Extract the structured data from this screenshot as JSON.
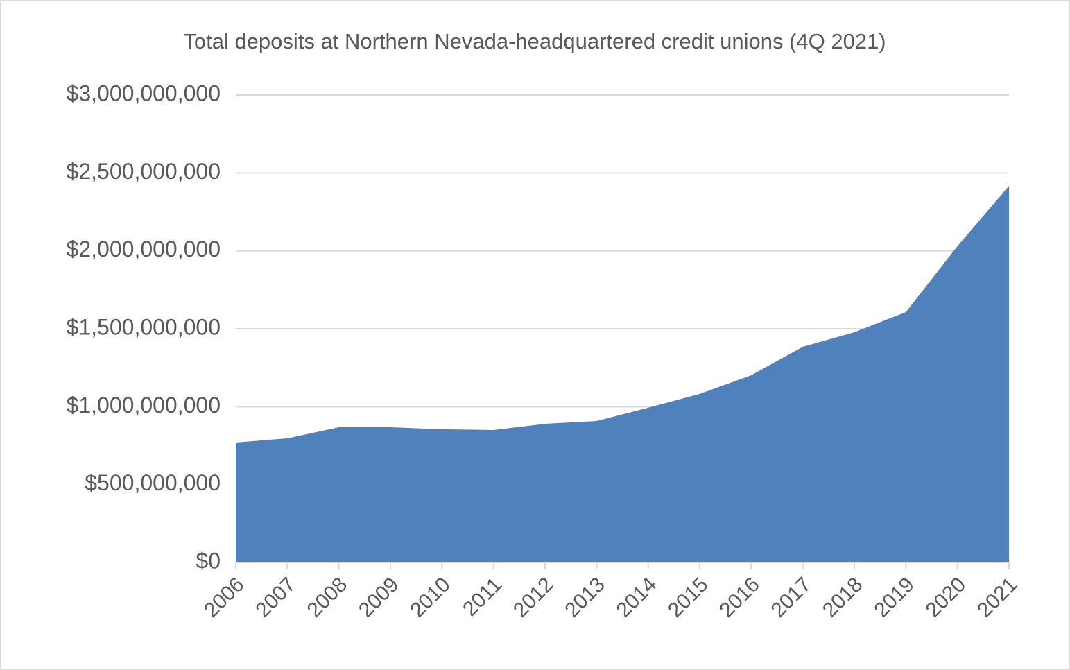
{
  "chart_data": {
    "type": "area",
    "title": "Total deposits at Northern Nevada-headquartered credit unions (4Q 2021)",
    "categories": [
      "2006",
      "2007",
      "2008",
      "2009",
      "2010",
      "2011",
      "2012",
      "2013",
      "2014",
      "2015",
      "2016",
      "2017",
      "2018",
      "2019",
      "2020",
      "2021"
    ],
    "values": [
      770000000,
      797000000,
      868000000,
      868000000,
      855000000,
      850000000,
      890000000,
      908000000,
      993000000,
      1082000000,
      1202000000,
      1384000000,
      1478000000,
      1607000000,
      2030000000,
      2417000000
    ],
    "color": "#4f81bd",
    "ylim": [
      0,
      3000000000
    ],
    "yticks": [
      {
        "value": 0,
        "label": "$0"
      },
      {
        "value": 500000000,
        "label": "$500,000,000"
      },
      {
        "value": 1000000000,
        "label": "$1,000,000,000"
      },
      {
        "value": 1500000000,
        "label": "$1,500,000,000"
      },
      {
        "value": 2000000000,
        "label": "$2,000,000,000"
      },
      {
        "value": 2500000000,
        "label": "$2,500,000,000"
      },
      {
        "value": 3000000000,
        "label": "$3,000,000,000"
      }
    ],
    "grid": true
  }
}
